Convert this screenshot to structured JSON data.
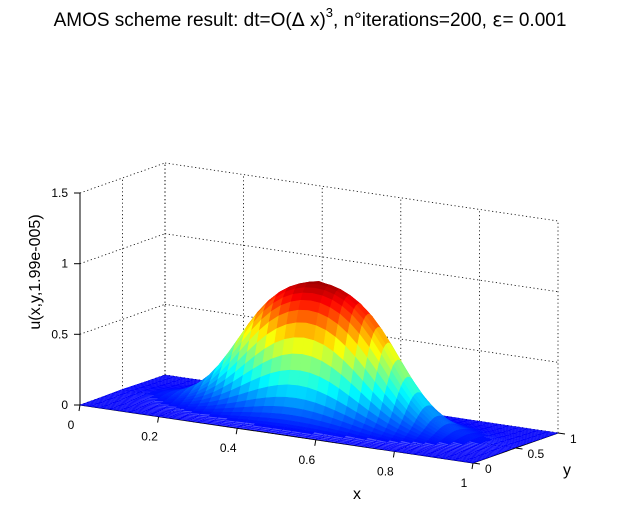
{
  "chart_data": {
    "type": "surface",
    "title": {
      "prefix": "AMOS scheme result: dt=O(",
      "delta": "Δ",
      "mid": " x)",
      "exponent": "3",
      "suffix_a": ", n°iterations=200, ",
      "epsilon": "ε",
      "suffix_b": "= 0.001"
    },
    "xlabel": "x",
    "ylabel": "y",
    "zlabel": "u(x,y,1.99e-005)",
    "xlim": [
      0,
      1
    ],
    "ylim": [
      0,
      1
    ],
    "zlim": [
      0,
      1.5
    ],
    "xticks": [
      0,
      0.2,
      0.4,
      0.6,
      0.8,
      1
    ],
    "xtick_labels": [
      "0",
      "0.2",
      "0.4",
      "0.6",
      "0.8",
      "1"
    ],
    "yticks": [
      0,
      0.5,
      1
    ],
    "ytick_labels": [
      "0",
      "0.5",
      "1"
    ],
    "zticks": [
      0,
      0.5,
      1,
      1.5
    ],
    "ztick_labels": [
      "0",
      "0.5",
      "1",
      "1.5"
    ],
    "surface": {
      "base_value": 0.0,
      "plateau_value": 1.0,
      "center_x": 0.5,
      "center_y": 0.5,
      "plateau_radius": 0.2,
      "steepness": 18,
      "resolution": 40
    },
    "colormap": "jet",
    "grid": true,
    "view": {
      "azimuth": -10,
      "elevation": 20
    }
  }
}
